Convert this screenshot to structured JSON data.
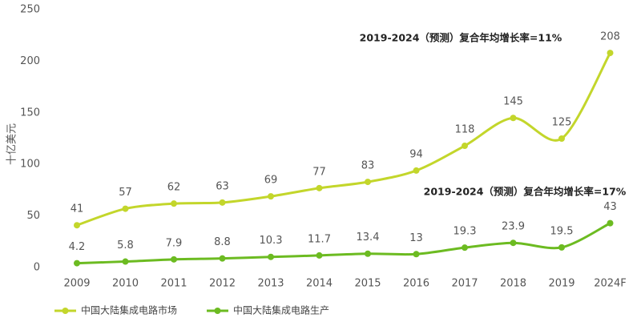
{
  "chart_data": {
    "type": "line",
    "y_label": "十亿美元",
    "categories": [
      "2009",
      "2010",
      "2011",
      "2012",
      "2013",
      "2014",
      "2015",
      "2016",
      "2017",
      "2018",
      "2019",
      "2024F"
    ],
    "series": [
      {
        "name": "中国大陆集成电路市场",
        "color": "#c3d62b",
        "values": [
          41,
          57,
          62,
          63,
          69,
          77,
          83,
          94,
          118,
          145,
          125,
          208
        ]
      },
      {
        "name": "中国大陆集成电路生产",
        "color": "#6cbb21",
        "values": [
          4.2,
          5.8,
          7.9,
          8.8,
          10.3,
          11.7,
          13.4,
          13,
          19.3,
          23.9,
          19.5,
          43
        ]
      }
    ],
    "annotations": [
      "2019-2024（预测）复合年均增长率=11%",
      "2019-2024（预测）复合年均增长率=17%"
    ],
    "ylim": [
      0,
      250
    ],
    "yticks": [
      0,
      50,
      100,
      150,
      200,
      250
    ],
    "grid": false,
    "legend": "bottom-left"
  }
}
